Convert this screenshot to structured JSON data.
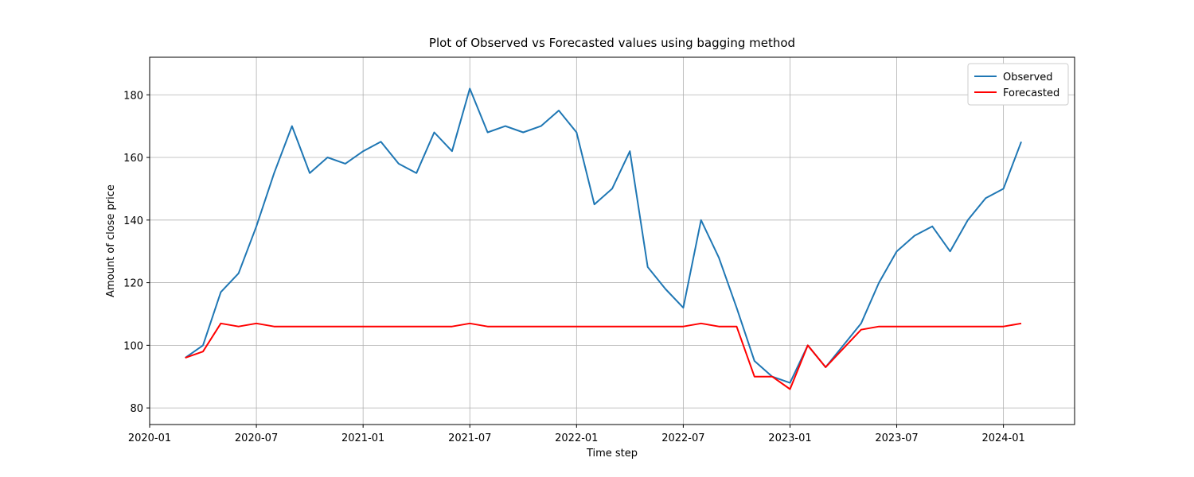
{
  "chart_data": {
    "type": "line",
    "title": "Plot of Observed vs Forecasted values using bagging method",
    "x_label": "Time step",
    "y_label": "Amount of close price",
    "x": [
      "2020-03",
      "2020-04",
      "2020-05",
      "2020-06",
      "2020-07",
      "2020-08",
      "2020-09",
      "2020-10",
      "2020-11",
      "2020-12",
      "2021-01",
      "2021-02",
      "2021-03",
      "2021-04",
      "2021-05",
      "2021-06",
      "2021-07",
      "2021-08",
      "2021-09",
      "2021-10",
      "2021-11",
      "2021-12",
      "2022-01",
      "2022-02",
      "2022-03",
      "2022-04",
      "2022-05",
      "2022-06",
      "2022-07",
      "2022-08",
      "2022-09",
      "2022-10",
      "2022-11",
      "2022-12",
      "2023-01",
      "2023-02",
      "2023-03",
      "2023-04",
      "2023-05",
      "2023-06",
      "2023-07",
      "2023-08",
      "2023-09",
      "2023-10",
      "2023-11",
      "2023-12",
      "2024-01",
      "2024-02"
    ],
    "series": [
      {
        "name": "Observed",
        "color": "#1f77b4",
        "values": [
          96,
          100,
          117,
          123,
          138,
          155,
          170,
          155,
          160,
          158,
          162,
          165,
          158,
          155,
          168,
          162,
          182,
          168,
          170,
          168,
          170,
          175,
          168,
          145,
          150,
          162,
          125,
          118,
          112,
          140,
          128,
          112,
          95,
          90,
          88,
          100,
          93,
          100,
          107,
          120,
          130,
          135,
          138,
          130,
          140,
          147,
          150,
          165
        ]
      },
      {
        "name": "Forecasted",
        "color": "#ff0000",
        "values": [
          96,
          98,
          107,
          106,
          107,
          106,
          106,
          106,
          106,
          106,
          106,
          106,
          106,
          106,
          106,
          106,
          107,
          106,
          106,
          106,
          106,
          106,
          106,
          106,
          106,
          106,
          106,
          106,
          106,
          107,
          106,
          106,
          90,
          90,
          86,
          100,
          93,
          99,
          105,
          106,
          106,
          106,
          106,
          106,
          106,
          106,
          106,
          107
        ]
      }
    ],
    "xlim": [
      "2020-01",
      "2024-05"
    ],
    "xticks": [
      "2020-01",
      "2020-07",
      "2021-01",
      "2021-07",
      "2022-01",
      "2022-07",
      "2023-01",
      "2023-07",
      "2024-01"
    ],
    "ylim": [
      74.7,
      192
    ],
    "yticks": [
      80,
      100,
      120,
      140,
      160,
      180
    ],
    "grid": true,
    "legend": "upper-right"
  }
}
